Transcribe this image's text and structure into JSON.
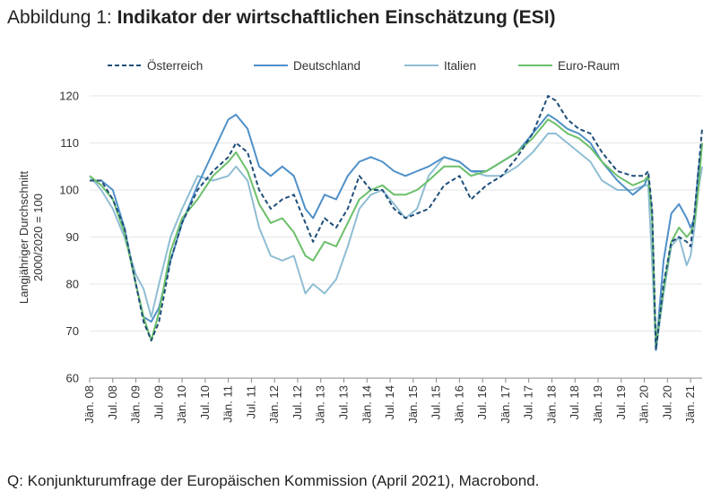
{
  "title": {
    "prefix": "Abbildung 1: ",
    "main": "Indikator der wirtschaftlichen Einschätzung (ESI)"
  },
  "source": "Q: Konjunkturumfrage der Europäischen Kommission (April 2021), Macrobond.",
  "colors": {
    "oesterreich": "#1f4e79",
    "deutschland": "#4f90c8",
    "italien": "#8fbdd3",
    "euroraum": "#6cbf6a",
    "grid": "#e6e6e6",
    "axis": "#888888"
  },
  "chart_data": {
    "type": "line",
    "ylabel": [
      "Langjähriger Durchschnitt",
      "2000/2020 = 100"
    ],
    "ylim": [
      60,
      120
    ],
    "yticks": [
      60,
      70,
      80,
      90,
      100,
      110,
      120
    ],
    "xlim": [
      "2008-01",
      "2021-04"
    ],
    "xtick_labels": [
      "Jän. 08",
      "Jul. 08",
      "Jän. 09",
      "Jul. 09",
      "Jän. 10",
      "Jul. 10",
      "Jän. 11",
      "Jul. 11",
      "Jän. 12",
      "Jul. 12",
      "Jän. 13",
      "Jul. 13",
      "Jän. 14",
      "Jul. 14",
      "Jän. 15",
      "Jul. 15",
      "Jän. 16",
      "Jul. 16",
      "Jän. 17",
      "Jul. 17",
      "Jän. 18",
      "Jul. 18",
      "Jän. 19",
      "Jul. 19",
      "Jän. 20",
      "Jul. 20",
      "Jän. 21"
    ],
    "grid": "horizontal",
    "legend": "top",
    "series": [
      {
        "name": "Österreich",
        "style": "dashed",
        "points": [
          [
            "2008-01",
            102
          ],
          [
            "2008-04",
            102
          ],
          [
            "2008-07",
            98
          ],
          [
            "2008-10",
            92
          ],
          [
            "2009-01",
            80
          ],
          [
            "2009-03",
            72
          ],
          [
            "2009-05",
            68
          ],
          [
            "2009-07",
            72
          ],
          [
            "2009-10",
            85
          ],
          [
            "2010-01",
            93
          ],
          [
            "2010-05",
            100
          ],
          [
            "2010-09",
            104
          ],
          [
            "2011-01",
            107
          ],
          [
            "2011-03",
            110
          ],
          [
            "2011-06",
            108
          ],
          [
            "2011-09",
            100
          ],
          [
            "2011-12",
            96
          ],
          [
            "2012-03",
            98
          ],
          [
            "2012-06",
            99
          ],
          [
            "2012-09",
            93
          ],
          [
            "2012-11",
            89
          ],
          [
            "2013-02",
            94
          ],
          [
            "2013-05",
            92
          ],
          [
            "2013-08",
            96
          ],
          [
            "2013-11",
            103
          ],
          [
            "2014-02",
            100
          ],
          [
            "2014-05",
            100
          ],
          [
            "2014-08",
            96
          ],
          [
            "2014-11",
            94
          ],
          [
            "2015-02",
            95
          ],
          [
            "2015-05",
            96
          ],
          [
            "2015-09",
            101
          ],
          [
            "2016-01",
            103
          ],
          [
            "2016-04",
            98
          ],
          [
            "2016-08",
            101
          ],
          [
            "2016-12",
            103
          ],
          [
            "2017-04",
            107
          ],
          [
            "2017-08",
            112
          ],
          [
            "2017-12",
            120
          ],
          [
            "2018-02",
            119
          ],
          [
            "2018-05",
            115
          ],
          [
            "2018-08",
            113
          ],
          [
            "2018-11",
            112
          ],
          [
            "2019-02",
            108
          ],
          [
            "2019-06",
            104
          ],
          [
            "2019-10",
            103
          ],
          [
            "2020-01",
            103
          ],
          [
            "2020-02",
            104
          ],
          [
            "2020-03",
            96
          ],
          [
            "2020-04",
            66
          ],
          [
            "2020-06",
            80
          ],
          [
            "2020-08",
            89
          ],
          [
            "2020-10",
            90
          ],
          [
            "2020-12",
            89
          ],
          [
            "2021-01",
            88
          ],
          [
            "2021-02",
            95
          ],
          [
            "2021-03",
            104
          ],
          [
            "2021-04",
            113
          ]
        ]
      },
      {
        "name": "Deutschland",
        "style": "solid",
        "points": [
          [
            "2008-01",
            102
          ],
          [
            "2008-04",
            102
          ],
          [
            "2008-07",
            100
          ],
          [
            "2008-10",
            92
          ],
          [
            "2009-01",
            80
          ],
          [
            "2009-03",
            73
          ],
          [
            "2009-05",
            72
          ],
          [
            "2009-07",
            75
          ],
          [
            "2009-10",
            85
          ],
          [
            "2010-01",
            93
          ],
          [
            "2010-05",
            101
          ],
          [
            "2010-09",
            108
          ],
          [
            "2011-01",
            115
          ],
          [
            "2011-03",
            116
          ],
          [
            "2011-06",
            113
          ],
          [
            "2011-09",
            105
          ],
          [
            "2011-12",
            103
          ],
          [
            "2012-03",
            105
          ],
          [
            "2012-06",
            103
          ],
          [
            "2012-09",
            96
          ],
          [
            "2012-11",
            94
          ],
          [
            "2013-02",
            99
          ],
          [
            "2013-05",
            98
          ],
          [
            "2013-08",
            103
          ],
          [
            "2013-11",
            106
          ],
          [
            "2014-02",
            107
          ],
          [
            "2014-05",
            106
          ],
          [
            "2014-08",
            104
          ],
          [
            "2014-11",
            103
          ],
          [
            "2015-02",
            104
          ],
          [
            "2015-05",
            105
          ],
          [
            "2015-09",
            107
          ],
          [
            "2016-01",
            106
          ],
          [
            "2016-04",
            104
          ],
          [
            "2016-08",
            104
          ],
          [
            "2016-12",
            106
          ],
          [
            "2017-04",
            108
          ],
          [
            "2017-08",
            112
          ],
          [
            "2017-12",
            116
          ],
          [
            "2018-02",
            115
          ],
          [
            "2018-05",
            113
          ],
          [
            "2018-08",
            112
          ],
          [
            "2018-11",
            110
          ],
          [
            "2019-02",
            106
          ],
          [
            "2019-06",
            102
          ],
          [
            "2019-10",
            99
          ],
          [
            "2020-01",
            101
          ],
          [
            "2020-02",
            103
          ],
          [
            "2020-03",
            95
          ],
          [
            "2020-04",
            66
          ],
          [
            "2020-06",
            85
          ],
          [
            "2020-08",
            95
          ],
          [
            "2020-10",
            97
          ],
          [
            "2020-12",
            94
          ],
          [
            "2021-01",
            92
          ],
          [
            "2021-02",
            94
          ],
          [
            "2021-03",
            104
          ],
          [
            "2021-04",
            110
          ]
        ]
      },
      {
        "name": "Italien",
        "style": "solid",
        "points": [
          [
            "2008-01",
            103
          ],
          [
            "2008-04",
            100
          ],
          [
            "2008-07",
            96
          ],
          [
            "2008-10",
            90
          ],
          [
            "2009-01",
            82
          ],
          [
            "2009-03",
            79
          ],
          [
            "2009-05",
            73
          ],
          [
            "2009-07",
            80
          ],
          [
            "2009-10",
            90
          ],
          [
            "2010-01",
            96
          ],
          [
            "2010-05",
            103
          ],
          [
            "2010-09",
            102
          ],
          [
            "2011-01",
            103
          ],
          [
            "2011-03",
            105
          ],
          [
            "2011-06",
            102
          ],
          [
            "2011-09",
            92
          ],
          [
            "2011-12",
            86
          ],
          [
            "2012-03",
            85
          ],
          [
            "2012-06",
            86
          ],
          [
            "2012-09",
            78
          ],
          [
            "2012-11",
            80
          ],
          [
            "2013-02",
            78
          ],
          [
            "2013-05",
            81
          ],
          [
            "2013-08",
            88
          ],
          [
            "2013-11",
            96
          ],
          [
            "2014-02",
            99
          ],
          [
            "2014-05",
            100
          ],
          [
            "2014-08",
            97
          ],
          [
            "2014-11",
            94
          ],
          [
            "2015-02",
            96
          ],
          [
            "2015-05",
            103
          ],
          [
            "2015-09",
            107
          ],
          [
            "2016-01",
            106
          ],
          [
            "2016-04",
            104
          ],
          [
            "2016-08",
            103
          ],
          [
            "2016-12",
            103
          ],
          [
            "2017-04",
            105
          ],
          [
            "2017-08",
            108
          ],
          [
            "2017-12",
            112
          ],
          [
            "2018-02",
            112
          ],
          [
            "2018-05",
            110
          ],
          [
            "2018-08",
            108
          ],
          [
            "2018-11",
            106
          ],
          [
            "2019-02",
            102
          ],
          [
            "2019-06",
            100
          ],
          [
            "2019-10",
            100
          ],
          [
            "2020-01",
            101
          ],
          [
            "2020-02",
            101
          ],
          [
            "2020-03",
            85
          ],
          [
            "2020-04",
            66
          ],
          [
            "2020-06",
            78
          ],
          [
            "2020-08",
            88
          ],
          [
            "2020-10",
            90
          ],
          [
            "2020-12",
            84
          ],
          [
            "2021-01",
            86
          ],
          [
            "2021-02",
            92
          ],
          [
            "2021-03",
            100
          ],
          [
            "2021-04",
            105
          ]
        ]
      },
      {
        "name": "Euro-Raum",
        "style": "solid",
        "points": [
          [
            "2008-01",
            103
          ],
          [
            "2008-04",
            101
          ],
          [
            "2008-07",
            98
          ],
          [
            "2008-10",
            91
          ],
          [
            "2009-01",
            80
          ],
          [
            "2009-03",
            73
          ],
          [
            "2009-05",
            68
          ],
          [
            "2009-07",
            74
          ],
          [
            "2009-10",
            87
          ],
          [
            "2010-01",
            94
          ],
          [
            "2010-05",
            98
          ],
          [
            "2010-09",
            103
          ],
          [
            "2011-01",
            106
          ],
          [
            "2011-03",
            108
          ],
          [
            "2011-06",
            104
          ],
          [
            "2011-09",
            97
          ],
          [
            "2011-12",
            93
          ],
          [
            "2012-03",
            94
          ],
          [
            "2012-06",
            91
          ],
          [
            "2012-09",
            86
          ],
          [
            "2012-11",
            85
          ],
          [
            "2013-02",
            89
          ],
          [
            "2013-05",
            88
          ],
          [
            "2013-08",
            93
          ],
          [
            "2013-11",
            98
          ],
          [
            "2014-02",
            100
          ],
          [
            "2014-05",
            101
          ],
          [
            "2014-08",
            99
          ],
          [
            "2014-11",
            99
          ],
          [
            "2015-02",
            100
          ],
          [
            "2015-05",
            102
          ],
          [
            "2015-09",
            105
          ],
          [
            "2016-01",
            105
          ],
          [
            "2016-04",
            103
          ],
          [
            "2016-08",
            104
          ],
          [
            "2016-12",
            106
          ],
          [
            "2017-04",
            108
          ],
          [
            "2017-08",
            111
          ],
          [
            "2017-12",
            115
          ],
          [
            "2018-02",
            114
          ],
          [
            "2018-05",
            112
          ],
          [
            "2018-08",
            111
          ],
          [
            "2018-11",
            109
          ],
          [
            "2019-02",
            106
          ],
          [
            "2019-06",
            103
          ],
          [
            "2019-10",
            101
          ],
          [
            "2020-01",
            102
          ],
          [
            "2020-02",
            103
          ],
          [
            "2020-03",
            94
          ],
          [
            "2020-04",
            67
          ],
          [
            "2020-06",
            79
          ],
          [
            "2020-08",
            89
          ],
          [
            "2020-10",
            92
          ],
          [
            "2020-12",
            90
          ],
          [
            "2021-01",
            91
          ],
          [
            "2021-02",
            93
          ],
          [
            "2021-03",
            100
          ],
          [
            "2021-04",
            110
          ]
        ]
      }
    ]
  }
}
